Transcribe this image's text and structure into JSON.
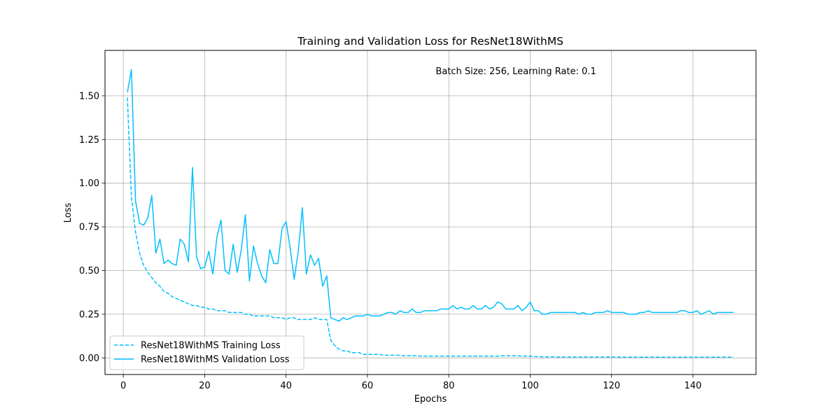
{
  "chart_data": {
    "type": "line",
    "title": "Training and Validation Loss for ResNet18WithMS",
    "annotation": "Batch Size: 256, Learning Rate: 0.1",
    "xlabel": "Epochs",
    "ylabel": "Loss",
    "xlim": [
      -4.5,
      155.5
    ],
    "ylim": [
      -0.095,
      1.76
    ],
    "x_ticks": [
      0,
      20,
      40,
      60,
      80,
      100,
      120,
      140
    ],
    "y_ticks": [
      0.0,
      0.25,
      0.5,
      0.75,
      1.0,
      1.25,
      1.5
    ],
    "y_tick_labels": [
      "0.00",
      "0.25",
      "0.50",
      "0.75",
      "1.00",
      "1.25",
      "1.50"
    ],
    "grid": true,
    "legend_position": "lower-left",
    "color": "#00bfff",
    "x": [
      1,
      2,
      3,
      4,
      5,
      6,
      7,
      8,
      9,
      10,
      11,
      12,
      13,
      14,
      15,
      16,
      17,
      18,
      19,
      20,
      21,
      22,
      23,
      24,
      25,
      26,
      27,
      28,
      29,
      30,
      31,
      32,
      33,
      34,
      35,
      36,
      37,
      38,
      39,
      40,
      41,
      42,
      43,
      44,
      45,
      46,
      47,
      48,
      49,
      50,
      51,
      52,
      53,
      54,
      55,
      56,
      57,
      58,
      59,
      60,
      61,
      62,
      63,
      64,
      65,
      66,
      67,
      68,
      69,
      70,
      71,
      72,
      73,
      74,
      75,
      76,
      77,
      78,
      79,
      80,
      81,
      82,
      83,
      84,
      85,
      86,
      87,
      88,
      89,
      90,
      91,
      92,
      93,
      94,
      95,
      96,
      97,
      98,
      99,
      100,
      101,
      102,
      103,
      104,
      105,
      106,
      107,
      108,
      109,
      110,
      111,
      112,
      113,
      114,
      115,
      116,
      117,
      118,
      119,
      120,
      121,
      122,
      123,
      124,
      125,
      126,
      127,
      128,
      129,
      130,
      131,
      132,
      133,
      134,
      135,
      136,
      137,
      138,
      139,
      140,
      141,
      142,
      143,
      144,
      145,
      146,
      147,
      148,
      149,
      150
    ],
    "series": [
      {
        "name": "ResNet18WithMS Training Loss",
        "dash": "dashed",
        "values": [
          1.49,
          0.92,
          0.72,
          0.6,
          0.53,
          0.49,
          0.46,
          0.43,
          0.41,
          0.38,
          0.37,
          0.35,
          0.34,
          0.33,
          0.32,
          0.31,
          0.3,
          0.3,
          0.29,
          0.29,
          0.28,
          0.28,
          0.27,
          0.27,
          0.27,
          0.26,
          0.26,
          0.26,
          0.26,
          0.25,
          0.25,
          0.24,
          0.24,
          0.24,
          0.24,
          0.24,
          0.23,
          0.23,
          0.23,
          0.22,
          0.23,
          0.23,
          0.22,
          0.22,
          0.22,
          0.22,
          0.23,
          0.22,
          0.22,
          0.22,
          0.1,
          0.07,
          0.05,
          0.04,
          0.04,
          0.03,
          0.03,
          0.03,
          0.02,
          0.02,
          0.02,
          0.02,
          0.02,
          0.015,
          0.015,
          0.015,
          0.015,
          0.015,
          0.012,
          0.012,
          0.012,
          0.012,
          0.01,
          0.01,
          0.01,
          0.01,
          0.01,
          0.01,
          0.01,
          0.01,
          0.01,
          0.01,
          0.01,
          0.01,
          0.01,
          0.01,
          0.01,
          0.01,
          0.01,
          0.01,
          0.01,
          0.01,
          0.012,
          0.012,
          0.012,
          0.012,
          0.012,
          0.01,
          0.01,
          0.01,
          0.008,
          0.007,
          0.006,
          0.006,
          0.006,
          0.006,
          0.005,
          0.005,
          0.005,
          0.005,
          0.005,
          0.005,
          0.005,
          0.005,
          0.005,
          0.005,
          0.005,
          0.005,
          0.005,
          0.005,
          0.005,
          0.005,
          0.004,
          0.004,
          0.004,
          0.004,
          0.004,
          0.004,
          0.004,
          0.004,
          0.004,
          0.004,
          0.004,
          0.004,
          0.004,
          0.004,
          0.004,
          0.004,
          0.004,
          0.004,
          0.004,
          0.004,
          0.004,
          0.004,
          0.004,
          0.004,
          0.004,
          0.004,
          0.004,
          0.004
        ]
      },
      {
        "name": "ResNet18WithMS Validation Loss",
        "dash": "solid",
        "values": [
          1.52,
          1.65,
          0.9,
          0.77,
          0.76,
          0.8,
          0.93,
          0.6,
          0.68,
          0.54,
          0.56,
          0.54,
          0.53,
          0.68,
          0.65,
          0.55,
          1.09,
          0.58,
          0.51,
          0.52,
          0.61,
          0.48,
          0.69,
          0.79,
          0.5,
          0.48,
          0.65,
          0.49,
          0.62,
          0.82,
          0.44,
          0.64,
          0.54,
          0.47,
          0.43,
          0.62,
          0.54,
          0.54,
          0.74,
          0.78,
          0.63,
          0.45,
          0.61,
          0.86,
          0.48,
          0.59,
          0.53,
          0.57,
          0.41,
          0.47,
          0.23,
          0.22,
          0.21,
          0.23,
          0.22,
          0.23,
          0.24,
          0.24,
          0.24,
          0.25,
          0.24,
          0.24,
          0.24,
          0.25,
          0.26,
          0.26,
          0.25,
          0.27,
          0.26,
          0.26,
          0.28,
          0.26,
          0.26,
          0.27,
          0.27,
          0.27,
          0.27,
          0.28,
          0.28,
          0.28,
          0.3,
          0.28,
          0.29,
          0.28,
          0.28,
          0.3,
          0.28,
          0.28,
          0.3,
          0.28,
          0.29,
          0.32,
          0.31,
          0.28,
          0.28,
          0.28,
          0.3,
          0.27,
          0.29,
          0.32,
          0.27,
          0.27,
          0.25,
          0.25,
          0.26,
          0.26,
          0.26,
          0.26,
          0.26,
          0.26,
          0.26,
          0.25,
          0.26,
          0.25,
          0.25,
          0.26,
          0.26,
          0.26,
          0.27,
          0.26,
          0.26,
          0.26,
          0.26,
          0.25,
          0.25,
          0.25,
          0.26,
          0.26,
          0.27,
          0.26,
          0.26,
          0.26,
          0.26,
          0.26,
          0.26,
          0.26,
          0.27,
          0.27,
          0.26,
          0.26,
          0.27,
          0.25,
          0.26,
          0.27,
          0.25,
          0.26,
          0.26,
          0.26,
          0.26,
          0.26
        ]
      }
    ]
  }
}
